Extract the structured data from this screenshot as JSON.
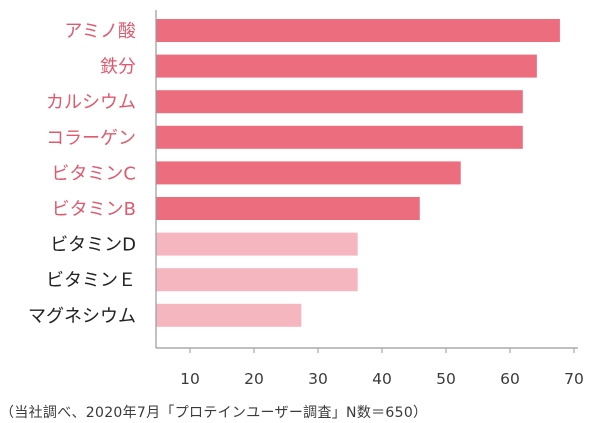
{
  "chart_data": {
    "type": "bar",
    "orientation": "horizontal",
    "categories": [
      "アミノ酸",
      "鉄分",
      "カルシウム",
      "コラーゲン",
      "ビタミンC",
      "ビタミンB",
      "ビタミンD",
      "ビタミンＥ",
      "マグネシウム"
    ],
    "values": [
      67.8,
      64.2,
      62.0,
      62.0,
      52.3,
      45.9,
      36.2,
      36.2,
      27.4
    ],
    "emphasis": [
      true,
      true,
      true,
      true,
      true,
      true,
      false,
      false,
      false
    ],
    "x_ticks": [
      10,
      20,
      30,
      40,
      50,
      60,
      70
    ],
    "xlim": [
      5,
      72
    ],
    "grid": false,
    "colors": {
      "emphasis_bar": "#ec6e7e",
      "normal_bar": "#f6b6c0",
      "emphasis_label": "#e05a6e",
      "normal_label": "#222222",
      "axis": "#9a9a9a"
    }
  },
  "footnote": "（当社調べ、2020年7月「プロテインユーザー調査」N数＝650）"
}
